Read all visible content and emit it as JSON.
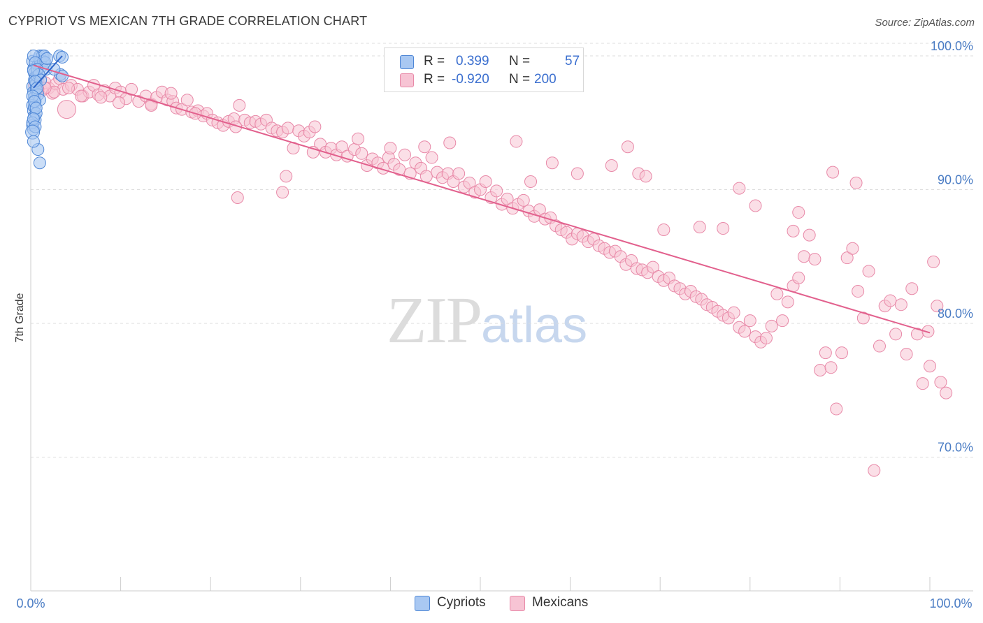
{
  "title": "CYPRIOT VS MEXICAN 7TH GRADE CORRELATION CHART",
  "source": "Source: ZipAtlas.com",
  "watermark": {
    "zip": "ZIP",
    "atlas": "atlas"
  },
  "colors": {
    "cypriots_fill": "#a9c8f2",
    "cypriots_stroke": "#4f87d6",
    "cypriots_line": "#2f66c9",
    "mexicans_fill": "#f7c4d4",
    "mexicans_stroke": "#e889a8",
    "mexicans_line": "#e2608d",
    "grid": "#dddddd",
    "tick_label": "#4a7cc4"
  },
  "legend": {
    "rows": [
      {
        "r_label": "R =",
        "r_value": "0.399",
        "n_label": "N =",
        "n_value": "57"
      },
      {
        "r_label": "R =",
        "r_value": "-0.920",
        "n_label": "N =",
        "n_value": "200"
      }
    ]
  },
  "bottom_legend": {
    "cypriots": "Cypriots",
    "mexicans": "Mexicans"
  },
  "chart_data": {
    "type": "scatter",
    "title": "CYPRIOT VS MEXICAN 7TH GRADE CORRELATION CHART",
    "xlabel": "",
    "ylabel": "7th Grade",
    "xlim": [
      0,
      100
    ],
    "ylim": [
      59.5,
      101.5
    ],
    "x_tick_labels": [
      "0.0%",
      "100.0%"
    ],
    "y_ticks": [
      70,
      80,
      90,
      100
    ],
    "y_tick_labels": [
      "70.0%",
      "80.0%",
      "90.0%",
      "100.0%"
    ],
    "grid": true,
    "legend_placement": "top-center",
    "series": [
      {
        "name": "Cypriots",
        "r": 0.399,
        "n": 57,
        "trend": [
          [
            0.3,
            97.6
          ],
          [
            3.5,
            100.0
          ]
        ],
        "points": [
          [
            0.2,
            99.6
          ],
          [
            0.3,
            99.0
          ],
          [
            0.4,
            98.7
          ],
          [
            0.5,
            98.4
          ],
          [
            0.6,
            98.0
          ],
          [
            0.2,
            97.7
          ],
          [
            0.3,
            97.3
          ],
          [
            0.4,
            96.9
          ],
          [
            0.5,
            96.6
          ],
          [
            0.2,
            96.3
          ],
          [
            0.3,
            95.9
          ],
          [
            0.4,
            95.5
          ],
          [
            0.5,
            95.2
          ],
          [
            0.2,
            94.8
          ],
          [
            0.3,
            94.5
          ],
          [
            0.4,
            98.2
          ],
          [
            0.6,
            97.9
          ],
          [
            0.7,
            98.5
          ],
          [
            0.8,
            99.3
          ],
          [
            0.9,
            99.8
          ],
          [
            1.0,
            100.0
          ],
          [
            1.1,
            99.6
          ],
          [
            1.2,
            99.2
          ],
          [
            1.3,
            100.0
          ],
          [
            1.4,
            99.6
          ],
          [
            1.5,
            100.0
          ],
          [
            1.6,
            99.5
          ],
          [
            1.7,
            99.0
          ],
          [
            1.8,
            99.8
          ],
          [
            0.3,
            100.0
          ],
          [
            0.5,
            99.5
          ],
          [
            0.7,
            99.0
          ],
          [
            0.9,
            98.6
          ],
          [
            1.1,
            98.2
          ],
          [
            0.6,
            97.5
          ],
          [
            0.8,
            97.1
          ],
          [
            1.0,
            96.7
          ],
          [
            0.4,
            96.2
          ],
          [
            0.6,
            95.7
          ],
          [
            0.2,
            95.0
          ],
          [
            3.2,
            100.0
          ],
          [
            3.5,
            99.9
          ],
          [
            3.3,
            98.6
          ],
          [
            3.5,
            98.5
          ],
          [
            2.6,
            99.0
          ],
          [
            0.3,
            98.9
          ],
          [
            0.5,
            98.1
          ],
          [
            0.7,
            97.6
          ],
          [
            0.2,
            97.0
          ],
          [
            0.4,
            96.6
          ],
          [
            0.6,
            96.1
          ],
          [
            0.3,
            95.3
          ],
          [
            0.5,
            94.7
          ],
          [
            1.0,
            92.0
          ],
          [
            0.8,
            93.0
          ],
          [
            0.2,
            94.3
          ],
          [
            0.3,
            93.6
          ]
        ]
      },
      {
        "name": "Mexicans",
        "r": -0.92,
        "n": 200,
        "trend": [
          [
            0.3,
            99.3
          ],
          [
            100.0,
            79.3
          ]
        ],
        "points": [
          [
            0.4,
            97.8
          ],
          [
            0.8,
            98.1
          ],
          [
            1.2,
            97.4
          ],
          [
            1.6,
            98.0
          ],
          [
            2.0,
            97.6
          ],
          [
            2.4,
            97.2
          ],
          [
            2.8,
            97.9
          ],
          [
            3.2,
            98.3
          ],
          [
            3.6,
            97.5
          ],
          [
            4.0,
            96.0
          ],
          [
            4.5,
            97.8
          ],
          [
            5.2,
            97.5
          ],
          [
            5.8,
            97.0
          ],
          [
            6.5,
            97.3
          ],
          [
            7.0,
            97.8
          ],
          [
            7.5,
            97.1
          ],
          [
            8.2,
            97.4
          ],
          [
            8.8,
            97.0
          ],
          [
            9.4,
            97.6
          ],
          [
            10.0,
            97.3
          ],
          [
            10.6,
            96.8
          ],
          [
            11.2,
            97.5
          ],
          [
            12.0,
            96.6
          ],
          [
            12.8,
            97.0
          ],
          [
            13.4,
            96.4
          ],
          [
            14.0,
            96.9
          ],
          [
            14.6,
            97.3
          ],
          [
            15.2,
            96.7
          ],
          [
            15.8,
            96.6
          ],
          [
            16.2,
            96.1
          ],
          [
            16.8,
            96.0
          ],
          [
            17.4,
            96.7
          ],
          [
            17.9,
            95.8
          ],
          [
            18.6,
            95.9
          ],
          [
            19.2,
            95.5
          ],
          [
            19.6,
            95.7
          ],
          [
            20.2,
            95.2
          ],
          [
            20.8,
            95.0
          ],
          [
            21.4,
            94.8
          ],
          [
            22.0,
            95.1
          ],
          [
            22.6,
            95.3
          ],
          [
            23.2,
            96.3
          ],
          [
            23.8,
            95.2
          ],
          [
            24.4,
            95.0
          ],
          [
            25.0,
            95.1
          ],
          [
            25.6,
            94.9
          ],
          [
            26.2,
            95.2
          ],
          [
            26.8,
            94.6
          ],
          [
            27.4,
            94.4
          ],
          [
            28.0,
            94.3
          ],
          [
            28.6,
            94.6
          ],
          [
            29.2,
            93.1
          ],
          [
            29.8,
            94.4
          ],
          [
            30.4,
            94.0
          ],
          [
            31.0,
            94.3
          ],
          [
            31.6,
            94.7
          ],
          [
            32.2,
            93.4
          ],
          [
            32.8,
            92.8
          ],
          [
            33.4,
            93.1
          ],
          [
            34.0,
            92.6
          ],
          [
            34.6,
            93.2
          ],
          [
            35.2,
            92.5
          ],
          [
            36.0,
            93.0
          ],
          [
            36.8,
            92.7
          ],
          [
            37.4,
            91.8
          ],
          [
            38.0,
            92.3
          ],
          [
            38.6,
            92.0
          ],
          [
            39.2,
            91.6
          ],
          [
            39.8,
            92.4
          ],
          [
            40.4,
            91.9
          ],
          [
            41.0,
            91.5
          ],
          [
            41.6,
            92.6
          ],
          [
            42.2,
            91.2
          ],
          [
            42.8,
            92.0
          ],
          [
            43.4,
            91.6
          ],
          [
            44.0,
            91.0
          ],
          [
            44.6,
            92.4
          ],
          [
            45.2,
            91.3
          ],
          [
            45.8,
            90.9
          ],
          [
            46.4,
            91.2
          ],
          [
            47.0,
            90.6
          ],
          [
            47.6,
            91.2
          ],
          [
            48.2,
            90.2
          ],
          [
            48.8,
            90.5
          ],
          [
            49.4,
            89.8
          ],
          [
            50.0,
            90.0
          ],
          [
            50.6,
            90.6
          ],
          [
            51.2,
            89.4
          ],
          [
            51.8,
            89.9
          ],
          [
            52.4,
            88.9
          ],
          [
            53.0,
            89.3
          ],
          [
            53.6,
            88.6
          ],
          [
            54.2,
            88.9
          ],
          [
            54.8,
            89.2
          ],
          [
            55.4,
            88.4
          ],
          [
            56.0,
            88.0
          ],
          [
            56.6,
            88.5
          ],
          [
            57.2,
            87.8
          ],
          [
            57.8,
            87.9
          ],
          [
            58.4,
            87.3
          ],
          [
            59.0,
            87.0
          ],
          [
            59.6,
            86.8
          ],
          [
            60.2,
            86.3
          ],
          [
            60.8,
            86.7
          ],
          [
            61.4,
            86.5
          ],
          [
            62.0,
            86.1
          ],
          [
            62.6,
            86.3
          ],
          [
            63.2,
            85.8
          ],
          [
            63.8,
            85.6
          ],
          [
            64.4,
            85.3
          ],
          [
            65.0,
            85.4
          ],
          [
            65.6,
            85.0
          ],
          [
            66.2,
            84.4
          ],
          [
            66.8,
            84.7
          ],
          [
            67.4,
            84.1
          ],
          [
            68.0,
            84.0
          ],
          [
            68.6,
            83.8
          ],
          [
            69.2,
            84.2
          ],
          [
            69.8,
            83.5
          ],
          [
            70.4,
            83.2
          ],
          [
            71.0,
            83.4
          ],
          [
            71.6,
            82.8
          ],
          [
            72.2,
            82.6
          ],
          [
            72.8,
            82.2
          ],
          [
            73.4,
            82.4
          ],
          [
            74.0,
            82.0
          ],
          [
            74.6,
            81.8
          ],
          [
            75.2,
            81.4
          ],
          [
            75.8,
            81.2
          ],
          [
            76.4,
            80.9
          ],
          [
            77.0,
            80.6
          ],
          [
            77.6,
            80.4
          ],
          [
            78.2,
            80.8
          ],
          [
            78.8,
            79.7
          ],
          [
            79.4,
            79.4
          ],
          [
            80.0,
            80.2
          ],
          [
            80.6,
            79.0
          ],
          [
            81.2,
            78.6
          ],
          [
            81.8,
            78.9
          ],
          [
            82.4,
            79.8
          ],
          [
            83.0,
            82.2
          ],
          [
            83.6,
            80.2
          ],
          [
            84.2,
            81.6
          ],
          [
            84.8,
            82.8
          ],
          [
            85.4,
            83.4
          ],
          [
            86.0,
            85.0
          ],
          [
            86.6,
            86.6
          ],
          [
            87.2,
            84.8
          ],
          [
            87.8,
            76.5
          ],
          [
            88.4,
            77.8
          ],
          [
            89.0,
            76.7
          ],
          [
            89.6,
            73.6
          ],
          [
            90.2,
            77.8
          ],
          [
            90.8,
            84.9
          ],
          [
            91.4,
            85.6
          ],
          [
            92.0,
            82.4
          ],
          [
            92.6,
            80.4
          ],
          [
            93.2,
            83.9
          ],
          [
            93.8,
            69.0
          ],
          [
            94.4,
            78.3
          ],
          [
            95.0,
            81.3
          ],
          [
            95.6,
            81.7
          ],
          [
            96.2,
            79.2
          ],
          [
            96.8,
            81.4
          ],
          [
            97.4,
            77.7
          ],
          [
            98.0,
            82.6
          ],
          [
            98.6,
            79.2
          ],
          [
            99.2,
            75.5
          ],
          [
            99.8,
            79.4
          ],
          [
            100.0,
            76.8
          ],
          [
            100.4,
            84.6
          ],
          [
            100.8,
            81.3
          ],
          [
            101.2,
            75.6
          ],
          [
            101.8,
            74.8
          ],
          [
            74.4,
            87.2
          ],
          [
            77.0,
            87.1
          ],
          [
            80.6,
            88.8
          ],
          [
            84.8,
            86.9
          ],
          [
            89.2,
            91.3
          ],
          [
            91.8,
            90.5
          ],
          [
            60.8,
            91.2
          ],
          [
            67.6,
            91.2
          ],
          [
            70.4,
            87.0
          ],
          [
            78.8,
            90.1
          ],
          [
            85.4,
            88.3
          ],
          [
            66.4,
            93.2
          ],
          [
            68.4,
            91.0
          ],
          [
            64.6,
            91.8
          ],
          [
            58.0,
            92.0
          ],
          [
            55.6,
            90.6
          ],
          [
            54.0,
            93.6
          ],
          [
            46.6,
            93.5
          ],
          [
            43.8,
            93.2
          ],
          [
            40.0,
            93.1
          ],
          [
            36.4,
            93.8
          ],
          [
            31.4,
            92.8
          ],
          [
            28.4,
            91.0
          ],
          [
            28.0,
            89.8
          ],
          [
            23.0,
            89.4
          ],
          [
            22.8,
            94.7
          ],
          [
            13.4,
            96.3
          ],
          [
            15.6,
            97.2
          ],
          [
            18.3,
            95.7
          ],
          [
            9.8,
            96.5
          ],
          [
            7.8,
            96.9
          ],
          [
            5.6,
            97.0
          ],
          [
            4.2,
            97.6
          ],
          [
            2.6,
            97.3
          ],
          [
            1.6,
            97.6
          ],
          [
            0.8,
            97.5
          ]
        ]
      }
    ]
  }
}
